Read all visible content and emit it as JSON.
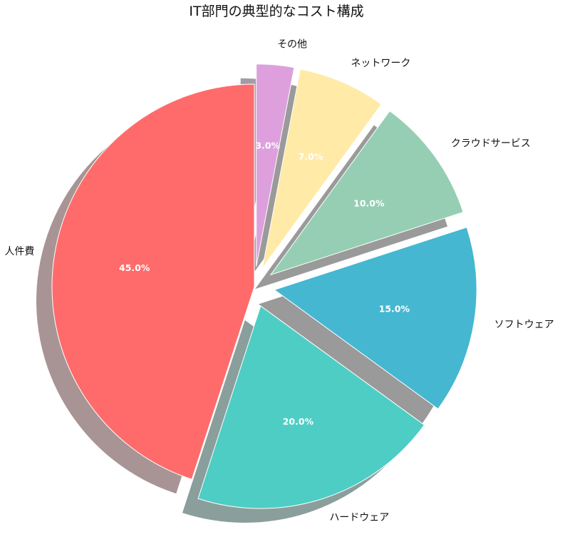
{
  "chart_data": {
    "type": "pie",
    "title": "IT部門の典型的なコスト構成",
    "start_angle_deg": 90,
    "direction": "counterclockwise",
    "shadow": true,
    "slices": [
      {
        "label": "人件費",
        "value": 45.0,
        "pct_label": "45.0%",
        "color": "#FF6B6B",
        "shadow_color": "#A89494",
        "exploded": false
      },
      {
        "label": "ハードウェア",
        "value": 20.0,
        "pct_label": "20.0%",
        "color": "#4ECDC4",
        "shadow_color": "#8A9F9C",
        "exploded": true
      },
      {
        "label": "ソフトウェア",
        "value": 15.0,
        "pct_label": "15.0%",
        "color": "#45B7D1",
        "shadow_color": "#9A9A9A",
        "exploded": true
      },
      {
        "label": "クラウドサービス",
        "value": 10.0,
        "pct_label": "10.0%",
        "color": "#96CEB4",
        "shadow_color": "#9A9A9A",
        "exploded": true
      },
      {
        "label": "ネットワーク",
        "value": 7.0,
        "pct_label": "7.0%",
        "color": "#FFEAA7",
        "shadow_color": "#9A9A9A",
        "exploded": true
      },
      {
        "label": "その他",
        "value": 3.0,
        "pct_label": "3.0%",
        "color": "#DDA0DD",
        "shadow_color": "#A49CA4",
        "exploded": true
      }
    ]
  }
}
